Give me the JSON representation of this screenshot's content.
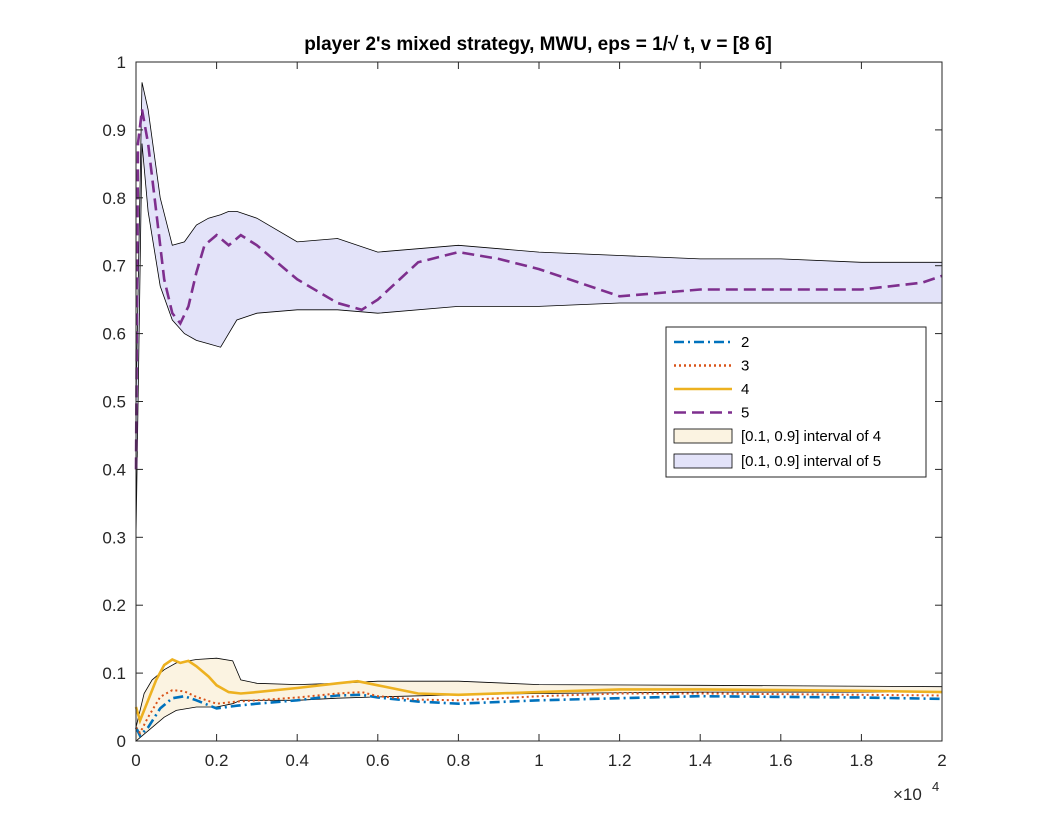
{
  "chart_data": {
    "type": "line",
    "title": "player 2's mixed strategy, MWU, eps = 1/√ t, v = [8  6]",
    "xlim": [
      0,
      20000
    ],
    "ylim": [
      0,
      1
    ],
    "x_ticks": [
      0,
      2000,
      4000,
      6000,
      8000,
      10000,
      12000,
      14000,
      16000,
      18000,
      20000
    ],
    "x_tick_labels": [
      "0",
      "0.2",
      "0.4",
      "0.6",
      "0.8",
      "1",
      "1.2",
      "1.4",
      "1.6",
      "1.8",
      "2"
    ],
    "x_exponent_label": {
      "base": "×10",
      "exponent": "4"
    },
    "y_ticks": [
      0,
      0.1,
      0.2,
      0.3,
      0.4,
      0.5,
      0.6,
      0.7,
      0.8,
      0.9,
      1
    ],
    "y_tick_labels": [
      "0",
      "0.1",
      "0.2",
      "0.3",
      "0.4",
      "0.5",
      "0.6",
      "0.7",
      "0.8",
      "0.9",
      "1"
    ],
    "grid": false,
    "legend_position": "right",
    "bands": [
      {
        "name": "[0.1, 0.9] interval of 4",
        "color": "#FBF3E1",
        "x": [
          0,
          200,
          400,
          700,
          1000,
          1500,
          2000,
          2400,
          2600,
          3000,
          4000,
          5000,
          6000,
          8000,
          10000,
          14000,
          20000
        ],
        "lower": [
          0.0,
          0.01,
          0.02,
          0.035,
          0.045,
          0.05,
          0.05,
          0.055,
          0.06,
          0.06,
          0.06,
          0.063,
          0.065,
          0.068,
          0.07,
          0.072,
          0.072
        ],
        "upper": [
          0.02,
          0.07,
          0.09,
          0.105,
          0.115,
          0.12,
          0.122,
          0.118,
          0.09,
          0.085,
          0.083,
          0.085,
          0.088,
          0.088,
          0.083,
          0.082,
          0.08
        ]
      },
      {
        "name": "[0.1, 0.9] interval of 5",
        "color": "#E3E3F9",
        "x": [
          0,
          150,
          300,
          600,
          900,
          1200,
          1500,
          1800,
          2100,
          2300,
          2500,
          3000,
          4000,
          5000,
          6000,
          8000,
          10000,
          12000,
          14000,
          16000,
          18000,
          20000
        ],
        "lower": [
          0.3,
          0.88,
          0.78,
          0.67,
          0.62,
          0.6,
          0.59,
          0.585,
          0.58,
          0.6,
          0.62,
          0.63,
          0.635,
          0.635,
          0.63,
          0.64,
          0.64,
          0.645,
          0.645,
          0.645,
          0.645,
          0.645
        ],
        "upper": [
          0.5,
          0.97,
          0.93,
          0.8,
          0.73,
          0.735,
          0.76,
          0.77,
          0.775,
          0.78,
          0.78,
          0.77,
          0.735,
          0.74,
          0.72,
          0.73,
          0.72,
          0.715,
          0.71,
          0.71,
          0.705,
          0.705
        ]
      }
    ],
    "series": [
      {
        "name": "2",
        "color": "#0072BD",
        "style": "dash-dot",
        "x": [
          0,
          100,
          300,
          600,
          900,
          1200,
          1500,
          2000,
          2500,
          3000,
          4000,
          5000,
          5600,
          6000,
          7000,
          8000,
          10000,
          12000,
          14000,
          16000,
          18000,
          20000
        ],
        "values": [
          0.02,
          0.008,
          0.02,
          0.048,
          0.063,
          0.066,
          0.06,
          0.048,
          0.052,
          0.055,
          0.06,
          0.067,
          0.068,
          0.064,
          0.058,
          0.055,
          0.06,
          0.063,
          0.066,
          0.065,
          0.064,
          0.062
        ]
      },
      {
        "name": "3",
        "color": "#D95319",
        "style": "dotted",
        "x": [
          0,
          100,
          300,
          600,
          900,
          1200,
          1500,
          2000,
          2500,
          3000,
          4000,
          5000,
          5600,
          6000,
          7000,
          8000,
          10000,
          12000,
          14000,
          16000,
          18000,
          20000
        ],
        "values": [
          0.02,
          0.012,
          0.035,
          0.065,
          0.075,
          0.073,
          0.065,
          0.055,
          0.058,
          0.06,
          0.064,
          0.07,
          0.072,
          0.066,
          0.061,
          0.06,
          0.066,
          0.07,
          0.07,
          0.069,
          0.068,
          0.067
        ]
      },
      {
        "name": "4",
        "color": "#EDB120",
        "style": "solid",
        "x": [
          0,
          100,
          300,
          500,
          700,
          900,
          1100,
          1300,
          1500,
          1800,
          2000,
          2300,
          2600,
          3000,
          4000,
          5000,
          5500,
          6000,
          7000,
          8000,
          10000,
          12000,
          14000,
          16000,
          18000,
          20000
        ],
        "values": [
          0.05,
          0.03,
          0.06,
          0.09,
          0.112,
          0.12,
          0.115,
          0.118,
          0.11,
          0.095,
          0.082,
          0.072,
          0.07,
          0.072,
          0.078,
          0.085,
          0.088,
          0.082,
          0.07,
          0.068,
          0.072,
          0.076,
          0.076,
          0.075,
          0.074,
          0.072
        ]
      },
      {
        "name": "5",
        "color": "#7E2F8E",
        "style": "dashed",
        "x": [
          0,
          50,
          150,
          300,
          500,
          700,
          900,
          1100,
          1300,
          1500,
          1700,
          2000,
          2300,
          2600,
          3000,
          4000,
          5000,
          5600,
          6000,
          7000,
          8000,
          9000,
          10000,
          12000,
          14000,
          16000,
          18000,
          19500,
          20000
        ],
        "values": [
          0.4,
          0.88,
          0.93,
          0.88,
          0.78,
          0.68,
          0.63,
          0.615,
          0.64,
          0.69,
          0.73,
          0.745,
          0.73,
          0.745,
          0.73,
          0.68,
          0.645,
          0.635,
          0.65,
          0.705,
          0.72,
          0.71,
          0.695,
          0.655,
          0.665,
          0.665,
          0.665,
          0.675,
          0.685
        ]
      }
    ]
  }
}
